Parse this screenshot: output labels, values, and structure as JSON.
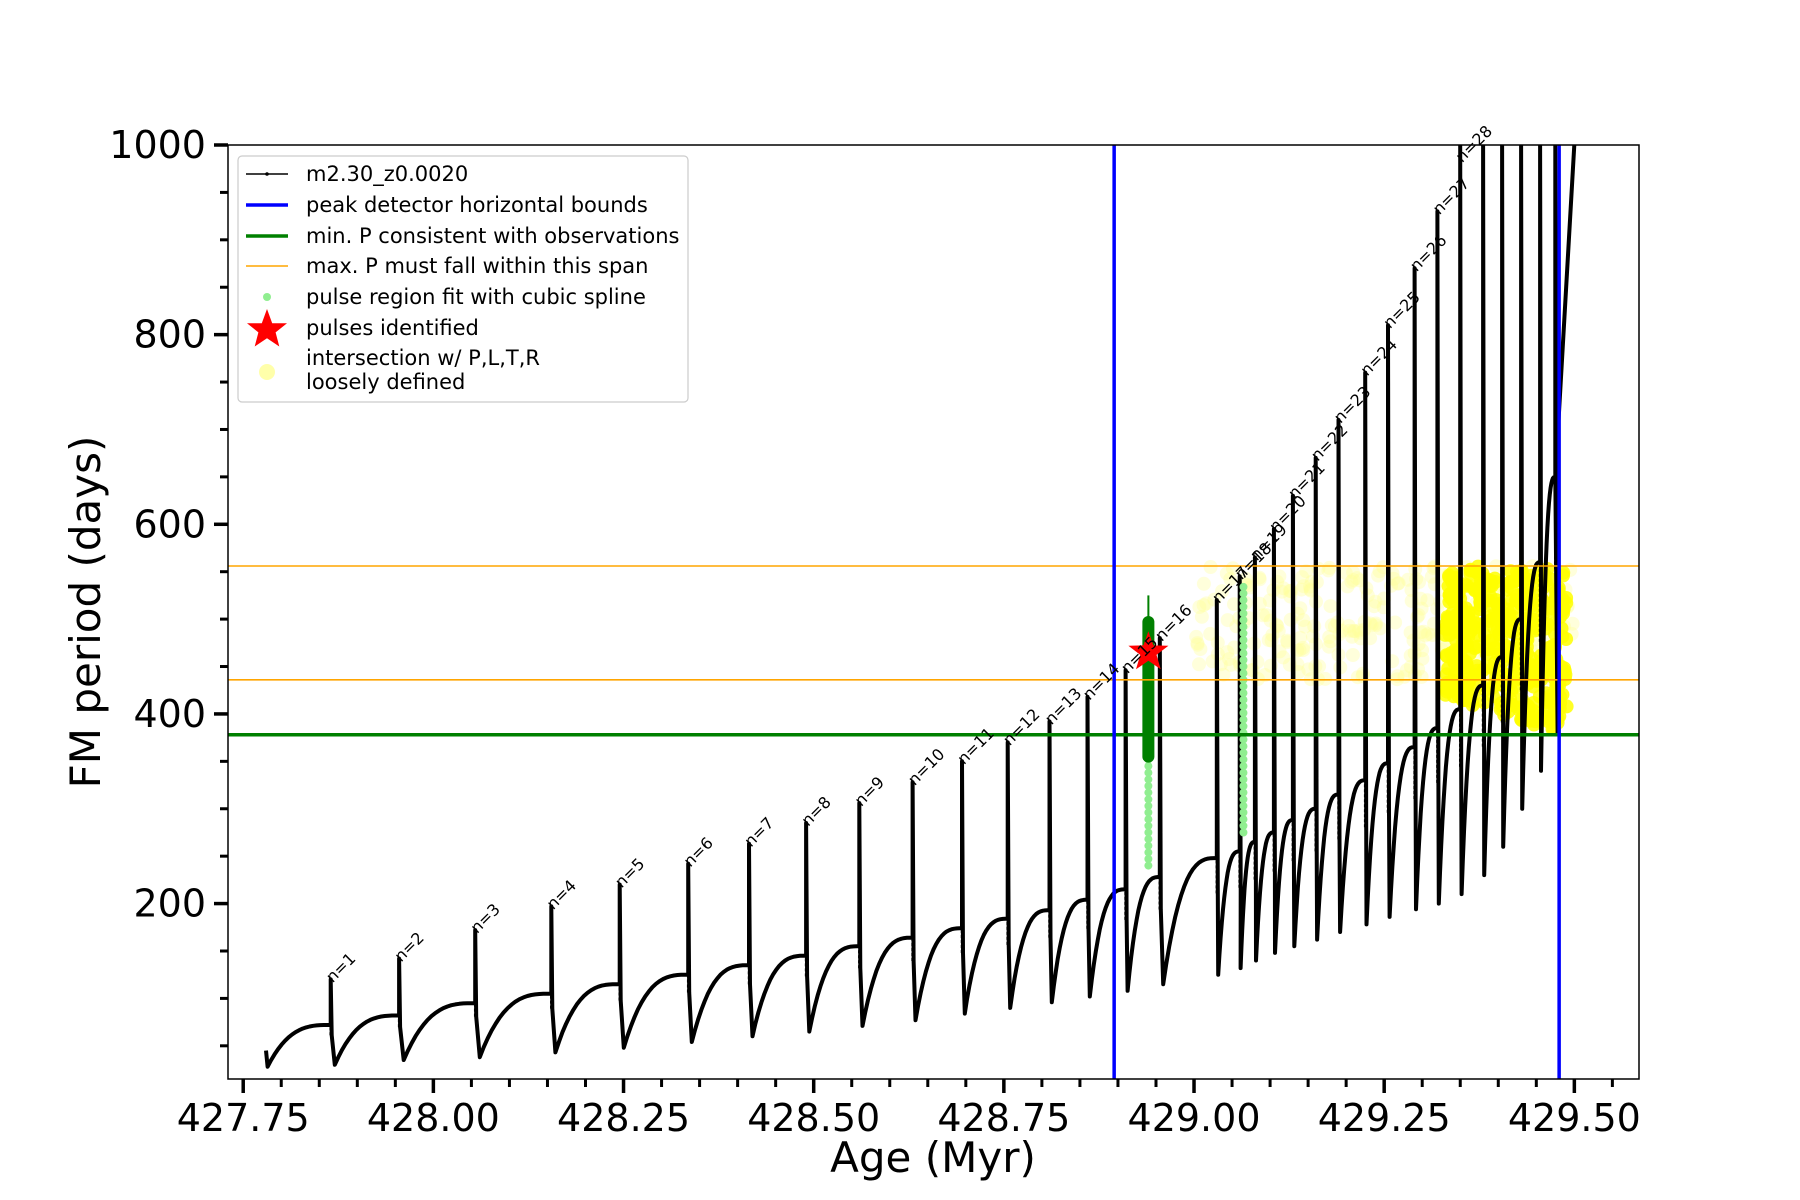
{
  "chart_data": {
    "type": "line",
    "title": "",
    "xlabel": "Age (Myr)",
    "ylabel": "FM period (days)",
    "xlim": [
      427.73,
      429.585
    ],
    "ylim": [
      15,
      1000
    ],
    "xticks": [
      427.75,
      428.0,
      428.25,
      428.5,
      428.75,
      429.0,
      429.25,
      429.5
    ],
    "xtick_labels": [
      "427.75",
      "428.00",
      "428.25",
      "428.50",
      "428.75",
      "429.00",
      "429.25",
      "429.50"
    ],
    "yticks": [
      200,
      400,
      600,
      800,
      1000
    ],
    "ytick_labels": [
      "200",
      "400",
      "600",
      "800",
      "1000"
    ],
    "grid": false,
    "legend_position": "top-left",
    "legend": [
      {
        "label": "m2.30_z0.0020",
        "style": "line-marker",
        "color": "#000000"
      },
      {
        "label": "peak detector horizontal bounds",
        "style": "line",
        "color": "#0000ff"
      },
      {
        "label": "min. P consistent with observations",
        "style": "line",
        "color": "#008000"
      },
      {
        "label": "max. P must fall within this span",
        "style": "thin-line",
        "color": "#ffa500"
      },
      {
        "label": "pulse region fit with cubic spline",
        "style": "dot",
        "color": "#90ee90"
      },
      {
        "label": "pulses identified",
        "style": "star",
        "color": "#ff0000"
      },
      {
        "label": "intersection w/ P,L,T,R",
        "label2": "loosely defined",
        "style": "circle",
        "color": "#ffffaa"
      }
    ],
    "reference_lines": {
      "vertical_blue_x": [
        428.895,
        429.48
      ],
      "horizontal_green_y": 378,
      "horizontal_orange_y": [
        436,
        556
      ]
    },
    "pulses": [
      {
        "n": 1,
        "label": "n=1",
        "x": 427.865,
        "peak": 120,
        "min": 30,
        "base": 72
      },
      {
        "n": 2,
        "label": "n=2",
        "x": 427.955,
        "peak": 142,
        "min": 35,
        "base": 82
      },
      {
        "n": 3,
        "label": "n=3",
        "x": 428.055,
        "peak": 172,
        "min": 38,
        "base": 95
      },
      {
        "n": 4,
        "label": "n=4",
        "x": 428.155,
        "peak": 197,
        "min": 43,
        "base": 105
      },
      {
        "n": 5,
        "label": "n=5",
        "x": 428.245,
        "peak": 220,
        "min": 48,
        "base": 115
      },
      {
        "n": 6,
        "label": "n=6",
        "x": 428.335,
        "peak": 242,
        "min": 54,
        "base": 125
      },
      {
        "n": 7,
        "label": "n=7",
        "x": 428.415,
        "peak": 263,
        "min": 60,
        "base": 135
      },
      {
        "n": 8,
        "label": "n=8",
        "x": 428.49,
        "peak": 285,
        "min": 65,
        "base": 145
      },
      {
        "n": 9,
        "label": "n=9",
        "x": 428.56,
        "peak": 306,
        "min": 71,
        "base": 155
      },
      {
        "n": 10,
        "label": "n=10",
        "x": 428.63,
        "peak": 328,
        "min": 77,
        "base": 164
      },
      {
        "n": 11,
        "label": "n=11",
        "x": 428.695,
        "peak": 350,
        "min": 84,
        "base": 174
      },
      {
        "n": 12,
        "label": "n=12",
        "x": 428.755,
        "peak": 370,
        "min": 90,
        "base": 184
      },
      {
        "n": 13,
        "label": "n=13",
        "x": 428.81,
        "peak": 392,
        "min": 96,
        "base": 193
      },
      {
        "n": 14,
        "label": "n=14",
        "x": 428.86,
        "peak": 418,
        "min": 102,
        "base": 204
      },
      {
        "n": 15,
        "label": "n=15",
        "x": 428.91,
        "peak": 446,
        "min": 108,
        "base": 215
      },
      {
        "n": 16,
        "label": "n=16",
        "x": 428.955,
        "peak": 480,
        "min": 115,
        "base": 228
      },
      {
        "n": 17,
        "label": "n=17",
        "x": 429.03,
        "peak": 520,
        "min": 125,
        "base": 248
      },
      {
        "n": 18,
        "label": "n=18",
        "x": 429.06,
        "peak": 545,
        "min": 132,
        "base": 255
      },
      {
        "n": 19,
        "label": "n=19",
        "x": 429.08,
        "peak": 565,
        "min": 140,
        "base": 265
      },
      {
        "n": 20,
        "label": "n=20",
        "x": 429.105,
        "peak": 595,
        "min": 148,
        "base": 275
      },
      {
        "n": 21,
        "label": "n=21",
        "x": 429.13,
        "peak": 630,
        "min": 155,
        "base": 288
      },
      {
        "n": 22,
        "label": "n=22",
        "x": 429.16,
        "peak": 670,
        "min": 162,
        "base": 300
      },
      {
        "n": 23,
        "label": "n=23",
        "x": 429.19,
        "peak": 710,
        "min": 170,
        "base": 315
      },
      {
        "n": 24,
        "label": "n=24",
        "x": 429.225,
        "peak": 760,
        "min": 178,
        "base": 330
      },
      {
        "n": 25,
        "label": "n=25",
        "x": 429.255,
        "peak": 810,
        "min": 186,
        "base": 348
      },
      {
        "n": 26,
        "label": "n=26",
        "x": 429.29,
        "peak": 870,
        "min": 194,
        "base": 365
      },
      {
        "n": 27,
        "label": "n=27",
        "x": 429.32,
        "peak": 930,
        "min": 200,
        "base": 385
      },
      {
        "n": 28,
        "label": "n=28",
        "x": 429.35,
        "peak": 1000,
        "min": 210,
        "base": 405
      }
    ],
    "extra_late_pulses": [
      {
        "x": 429.38,
        "peak": 1000,
        "min": 230,
        "base": 430
      },
      {
        "x": 429.405,
        "peak": 1000,
        "min": 260,
        "base": 460
      },
      {
        "x": 429.43,
        "peak": 1000,
        "min": 300,
        "base": 500
      },
      {
        "x": 429.455,
        "peak": 1000,
        "min": 340,
        "base": 560
      },
      {
        "x": 429.475,
        "peak": 1000,
        "min": 380,
        "base": 650
      }
    ],
    "final_rise": {
      "x_start": 429.475,
      "x_end": 429.5,
      "y_start": 650,
      "y_end": 1000
    },
    "spline_fits": [
      {
        "x": 428.94,
        "y_min": 240,
        "y_max": 500
      },
      {
        "x": 429.065,
        "y_min": 275,
        "y_max": 540
      }
    ],
    "identified_pulse_region": {
      "x": 428.94,
      "y_min": 355,
      "y_max": 497,
      "whisker_max": 525
    },
    "pulses_identified_star": {
      "x": 428.94,
      "y": 465
    },
    "intersection_band": {
      "x_start": 429.0,
      "x_end": 429.5,
      "y_min": 436,
      "y_max": 556
    },
    "intersection_dense": {
      "x_start": 429.33,
      "x_end": 429.49,
      "y_min": 378,
      "y_max": 556
    }
  }
}
